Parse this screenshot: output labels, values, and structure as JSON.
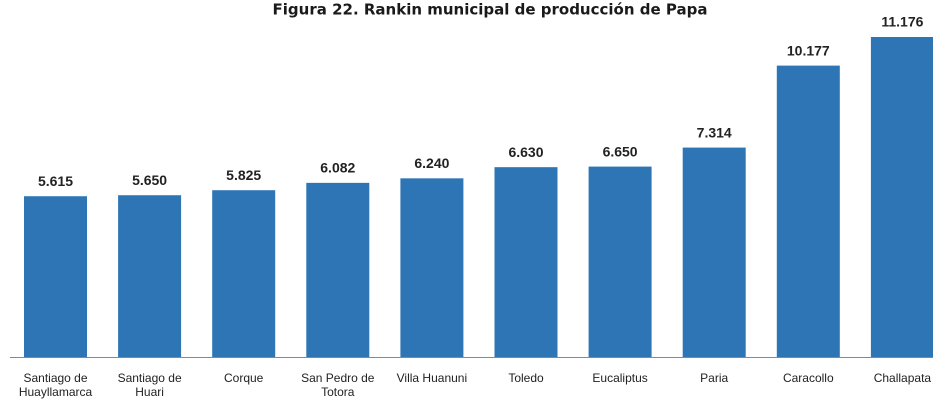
{
  "chart_data": {
    "type": "bar",
    "title": "Figura 22. Rankin municipal de producción de Papa",
    "categories": [
      "Santiago de Huayllamarca",
      "Santiago de Huari",
      "Corque",
      "San Pedro de Totora",
      "Villa Huanuni",
      "Toledo",
      "Eucaliptus",
      "Paria",
      "Caracollo",
      "Challapata"
    ],
    "values": [
      5.615,
      5.65,
      5.825,
      6.082,
      6.24,
      6.63,
      6.65,
      7.314,
      10.177,
      11.176
    ],
    "value_labels": [
      "5.615",
      "5.650",
      "5.825",
      "6.082",
      "6.240",
      "6.630",
      "6.650",
      "7.314",
      "10.177",
      "11.176"
    ],
    "color": "#2e75b6"
  }
}
